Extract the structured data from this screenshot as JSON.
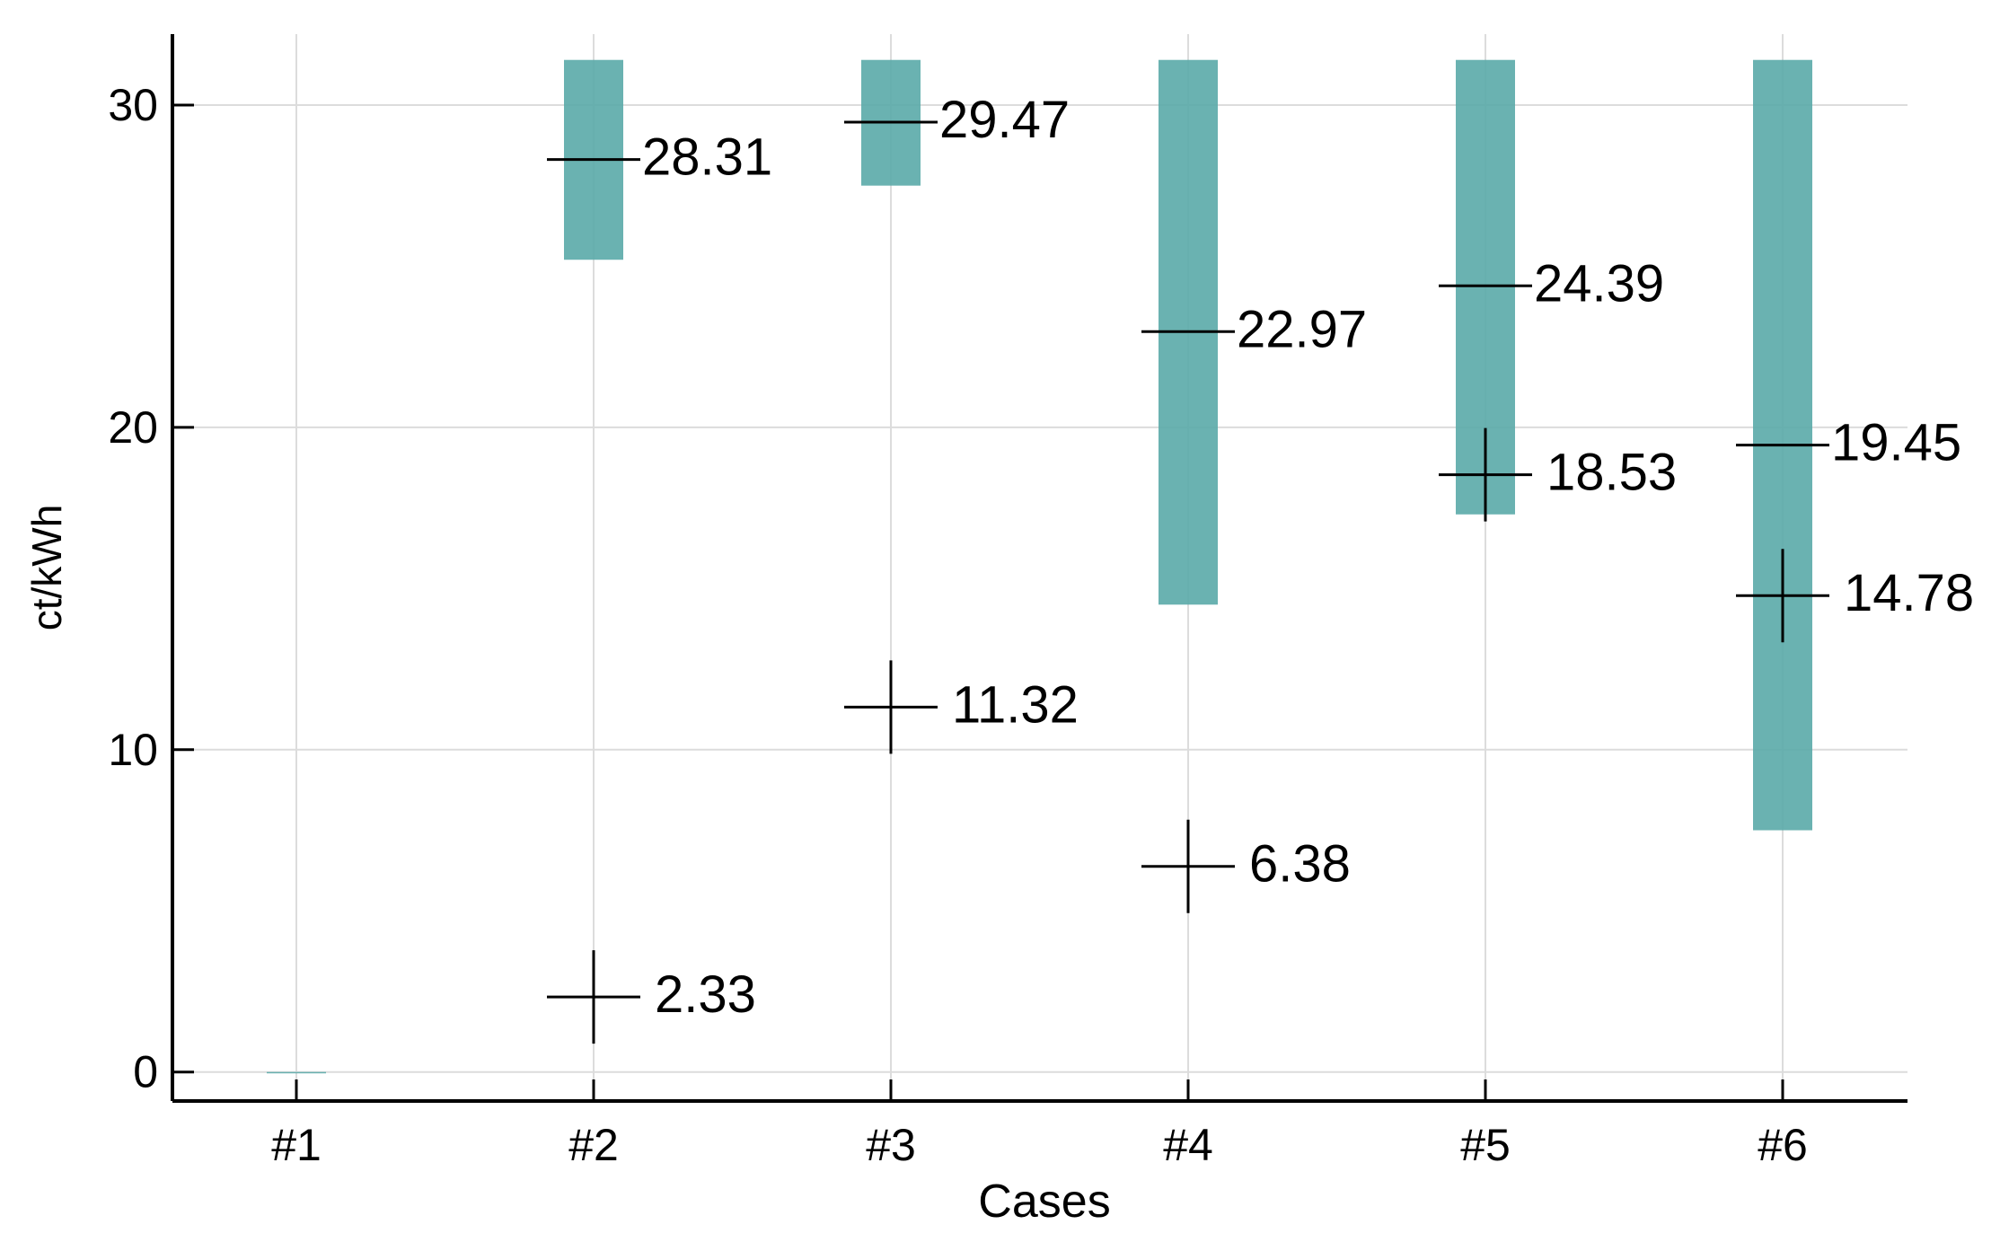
{
  "chart_data": {
    "type": "bar",
    "title": "",
    "xlabel": "Cases",
    "ylabel": "ct/kWh",
    "categories": [
      "#1",
      "#2",
      "#3",
      "#4",
      "#5",
      "#6"
    ],
    "ylim": [
      -0.9,
      32.2
    ],
    "yticks": [
      0,
      10,
      20,
      30
    ],
    "grid": true,
    "legend": "none",
    "bar_color": "#5aaaa8",
    "series": [
      {
        "name": "range",
        "kind": "floating-bar",
        "ranges": [
          [
            0,
            0
          ],
          [
            25.2,
            31.4
          ],
          [
            27.5,
            31.4
          ],
          [
            14.5,
            31.4
          ],
          [
            17.3,
            31.4
          ],
          [
            7.5,
            31.4
          ]
        ]
      },
      {
        "name": "horizontal marker",
        "kind": "horizontal-tick",
        "values": [
          null,
          28.31,
          29.47,
          22.97,
          24.39,
          19.45
        ],
        "labels": [
          "",
          "28.31",
          "29.47",
          "22.97",
          "24.39",
          "19.45"
        ]
      },
      {
        "name": "cross marker",
        "kind": "cross",
        "values": [
          null,
          2.33,
          11.32,
          6.38,
          18.53,
          14.78
        ],
        "labels": [
          "",
          "2.33",
          "11.32",
          "6.38",
          "18.53",
          "14.78"
        ]
      }
    ]
  }
}
